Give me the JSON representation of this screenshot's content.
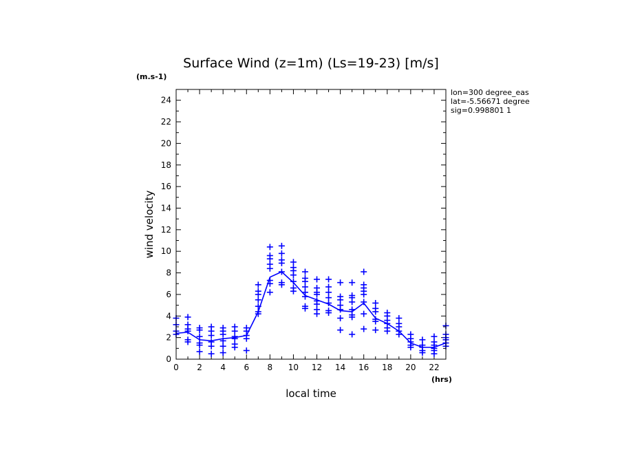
{
  "chart_data": {
    "type": "scatter",
    "title": "Surface Wind (z=1m) (Ls=19-23) [m/s]",
    "ylabel": "wind velocity",
    "yunits": "(m.s-1)",
    "xlabel": "local time",
    "xunits": "(hrs)",
    "xlim": [
      0,
      23
    ],
    "ylim": [
      0,
      25
    ],
    "xticks": [
      0,
      2,
      4,
      6,
      8,
      10,
      12,
      14,
      16,
      18,
      20,
      22
    ],
    "yticks": [
      0,
      2,
      4,
      6,
      8,
      10,
      12,
      14,
      16,
      18,
      20,
      22,
      24
    ],
    "grid": false,
    "color": "#0000ff",
    "info_lines": [
      "lon=300 degree_eas",
      "lat=-5.56671 degree",
      "sig=0.998801 1"
    ],
    "series": [
      {
        "kind": "line",
        "x": [
          0,
          1,
          2,
          3,
          4,
          5,
          6,
          7,
          8,
          9,
          10,
          11,
          12,
          13,
          14,
          15,
          16,
          17,
          18,
          19,
          20,
          21,
          22,
          23
        ],
        "y": [
          2.4,
          2.5,
          1.8,
          1.7,
          1.9,
          2.0,
          2.2,
          4.4,
          7.6,
          8.1,
          7.1,
          5.9,
          5.5,
          5.1,
          4.5,
          4.4,
          5.2,
          3.8,
          3.3,
          2.6,
          1.5,
          1.1,
          1.1,
          1.5
        ]
      },
      {
        "kind": "markers",
        "marker": "+",
        "points": [
          [
            0,
            3.8
          ],
          [
            0,
            3.2
          ],
          [
            0,
            2.6
          ],
          [
            0,
            2.3
          ],
          [
            1,
            3.9
          ],
          [
            1,
            3.2
          ],
          [
            1,
            2.8
          ],
          [
            1,
            2.6
          ],
          [
            1,
            1.8
          ],
          [
            1,
            1.6
          ],
          [
            2,
            2.9
          ],
          [
            2,
            2.7
          ],
          [
            2,
            2.1
          ],
          [
            2,
            1.5
          ],
          [
            2,
            1.3
          ],
          [
            2,
            0.7
          ],
          [
            3,
            3.0
          ],
          [
            3,
            2.6
          ],
          [
            3,
            2.2
          ],
          [
            3,
            1.6
          ],
          [
            3,
            1.2
          ],
          [
            3,
            0.5
          ],
          [
            4,
            2.9
          ],
          [
            4,
            2.6
          ],
          [
            4,
            2.3
          ],
          [
            4,
            1.7
          ],
          [
            4,
            1.2
          ],
          [
            4,
            0.6
          ],
          [
            5,
            3.0
          ],
          [
            5,
            2.6
          ],
          [
            5,
            2.1
          ],
          [
            5,
            1.9
          ],
          [
            5,
            1.4
          ],
          [
            5,
            1.1
          ],
          [
            6,
            2.9
          ],
          [
            6,
            2.6
          ],
          [
            6,
            2.2
          ],
          [
            6,
            1.9
          ],
          [
            6,
            0.8
          ],
          [
            7,
            6.9
          ],
          [
            7,
            6.3
          ],
          [
            7,
            6.0
          ],
          [
            7,
            5.5
          ],
          [
            7,
            4.9
          ],
          [
            7,
            4.4
          ],
          [
            7,
            4.2
          ],
          [
            8,
            10.4
          ],
          [
            8,
            9.6
          ],
          [
            8,
            9.3
          ],
          [
            8,
            8.8
          ],
          [
            8,
            8.4
          ],
          [
            8,
            7.3
          ],
          [
            8,
            7.0
          ],
          [
            8,
            6.2
          ],
          [
            9,
            10.5
          ],
          [
            9,
            9.8
          ],
          [
            9,
            9.2
          ],
          [
            9,
            8.9
          ],
          [
            9,
            8.1
          ],
          [
            9,
            7.1
          ],
          [
            9,
            6.9
          ],
          [
            10,
            9.0
          ],
          [
            10,
            8.5
          ],
          [
            10,
            8.2
          ],
          [
            10,
            7.8
          ],
          [
            10,
            7.2
          ],
          [
            10,
            6.6
          ],
          [
            10,
            6.3
          ],
          [
            11,
            8.1
          ],
          [
            11,
            7.5
          ],
          [
            11,
            7.2
          ],
          [
            11,
            6.7
          ],
          [
            11,
            6.2
          ],
          [
            11,
            5.8
          ],
          [
            11,
            4.9
          ],
          [
            11,
            4.7
          ],
          [
            12,
            7.4
          ],
          [
            12,
            6.6
          ],
          [
            12,
            6.2
          ],
          [
            12,
            6.0
          ],
          [
            12,
            5.4
          ],
          [
            12,
            5.1
          ],
          [
            12,
            4.6
          ],
          [
            12,
            4.2
          ],
          [
            13,
            7.4
          ],
          [
            13,
            6.7
          ],
          [
            13,
            6.2
          ],
          [
            13,
            5.7
          ],
          [
            13,
            5.2
          ],
          [
            13,
            4.5
          ],
          [
            13,
            4.3
          ],
          [
            14,
            7.1
          ],
          [
            14,
            5.8
          ],
          [
            14,
            5.5
          ],
          [
            14,
            5.0
          ],
          [
            14,
            4.6
          ],
          [
            14,
            3.8
          ],
          [
            14,
            2.7
          ],
          [
            15,
            7.1
          ],
          [
            15,
            5.9
          ],
          [
            15,
            5.7
          ],
          [
            15,
            5.3
          ],
          [
            15,
            4.6
          ],
          [
            15,
            4.1
          ],
          [
            15,
            3.9
          ],
          [
            15,
            2.3
          ],
          [
            16,
            8.1
          ],
          [
            16,
            6.9
          ],
          [
            16,
            6.6
          ],
          [
            16,
            6.3
          ],
          [
            16,
            6.0
          ],
          [
            16,
            5.3
          ],
          [
            16,
            4.2
          ],
          [
            16,
            2.8
          ],
          [
            17,
            5.2
          ],
          [
            17,
            4.7
          ],
          [
            17,
            4.4
          ],
          [
            17,
            3.7
          ],
          [
            17,
            3.5
          ],
          [
            17,
            2.7
          ],
          [
            18,
            4.3
          ],
          [
            18,
            4.0
          ],
          [
            18,
            3.6
          ],
          [
            18,
            3.3
          ],
          [
            18,
            2.9
          ],
          [
            18,
            2.6
          ],
          [
            19,
            3.8
          ],
          [
            19,
            3.3
          ],
          [
            19,
            3.0
          ],
          [
            19,
            2.6
          ],
          [
            19,
            2.3
          ],
          [
            20,
            2.3
          ],
          [
            20,
            1.9
          ],
          [
            20,
            1.6
          ],
          [
            20,
            1.3
          ],
          [
            20,
            1.1
          ],
          [
            21,
            1.8
          ],
          [
            21,
            1.3
          ],
          [
            21,
            1.1
          ],
          [
            21,
            0.8
          ],
          [
            21,
            0.6
          ],
          [
            22,
            2.1
          ],
          [
            22,
            1.6
          ],
          [
            22,
            1.3
          ],
          [
            22,
            1.0
          ],
          [
            22,
            0.8
          ],
          [
            22,
            0.5
          ],
          [
            23,
            3.1
          ],
          [
            23,
            2.3
          ],
          [
            23,
            2.0
          ],
          [
            23,
            1.8
          ],
          [
            23,
            1.5
          ],
          [
            23,
            1.2
          ]
        ]
      }
    ]
  }
}
